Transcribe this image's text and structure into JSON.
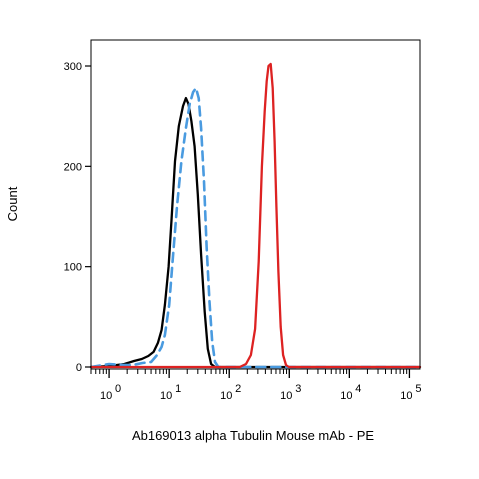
{
  "chart_data": {
    "type": "line",
    "title": "",
    "xlabel": "Ab169013 alpha Tubulin Mouse mAb - PE",
    "ylabel": "Count",
    "x_scale": "log",
    "xlim": [
      0.5,
      150000
    ],
    "ylim": [
      0,
      330
    ],
    "y_ticks": [
      0,
      100,
      200,
      300
    ],
    "x_ticks": [
      {
        "value": 1,
        "base": "10",
        "exp": "0"
      },
      {
        "value": 10,
        "base": "10",
        "exp": "1"
      },
      {
        "value": 100,
        "base": "10",
        "exp": "2"
      },
      {
        "value": 1000,
        "base": "10",
        "exp": "3"
      },
      {
        "value": 10000,
        "base": "10",
        "exp": "4"
      },
      {
        "value": 100000,
        "base": "10",
        "exp": "5"
      }
    ],
    "grid": false,
    "legend": "none",
    "series": [
      {
        "color": "#000000",
        "style": "solid",
        "points": [
          [
            0.5,
            0
          ],
          [
            1.0,
            1
          ],
          [
            1.8,
            3
          ],
          [
            2.6,
            6
          ],
          [
            3.5,
            8
          ],
          [
            4.5,
            11
          ],
          [
            5.5,
            15
          ],
          [
            6.5,
            24
          ],
          [
            7.5,
            37
          ],
          [
            8.5,
            62
          ],
          [
            9.8,
            100
          ],
          [
            11,
            148
          ],
          [
            12.5,
            205
          ],
          [
            14.5,
            240
          ],
          [
            17,
            260
          ],
          [
            19,
            268
          ],
          [
            21,
            262
          ],
          [
            23.5,
            245
          ],
          [
            26.5,
            220
          ],
          [
            30,
            172
          ],
          [
            34,
            112
          ],
          [
            39,
            55
          ],
          [
            44,
            18
          ],
          [
            50,
            3
          ],
          [
            58,
            0
          ],
          [
            150000,
            0
          ]
        ]
      },
      {
        "color": "#4a9be0",
        "style": "dashed",
        "points": [
          [
            0.5,
            0
          ],
          [
            1.0,
            3
          ],
          [
            1.8,
            2
          ],
          [
            2.5,
            2
          ],
          [
            3.6,
            4
          ],
          [
            5.0,
            5
          ],
          [
            6.3,
            12
          ],
          [
            7.5,
            20
          ],
          [
            8.5,
            32
          ],
          [
            10,
            62
          ],
          [
            11.5,
            108
          ],
          [
            13.5,
            160
          ],
          [
            16,
            205
          ],
          [
            19,
            238
          ],
          [
            22,
            262
          ],
          [
            25,
            274
          ],
          [
            28,
            278
          ],
          [
            31,
            268
          ],
          [
            34,
            238
          ],
          [
            38,
            185
          ],
          [
            42,
            120
          ],
          [
            47,
            65
          ],
          [
            52,
            25
          ],
          [
            58,
            5
          ],
          [
            66,
            0
          ],
          [
            150000,
            0
          ]
        ]
      },
      {
        "color": "#dd2222",
        "style": "solid",
        "points": [
          [
            0.5,
            0
          ],
          [
            150,
            0
          ],
          [
            190,
            3
          ],
          [
            230,
            12
          ],
          [
            270,
            38
          ],
          [
            310,
            105
          ],
          [
            350,
            200
          ],
          [
            390,
            255
          ],
          [
            420,
            285
          ],
          [
            450,
            300
          ],
          [
            490,
            302
          ],
          [
            530,
            278
          ],
          [
            570,
            225
          ],
          [
            610,
            160
          ],
          [
            660,
            95
          ],
          [
            720,
            40
          ],
          [
            790,
            12
          ],
          [
            880,
            2
          ],
          [
            980,
            0
          ],
          [
            150000,
            0
          ]
        ]
      }
    ]
  }
}
